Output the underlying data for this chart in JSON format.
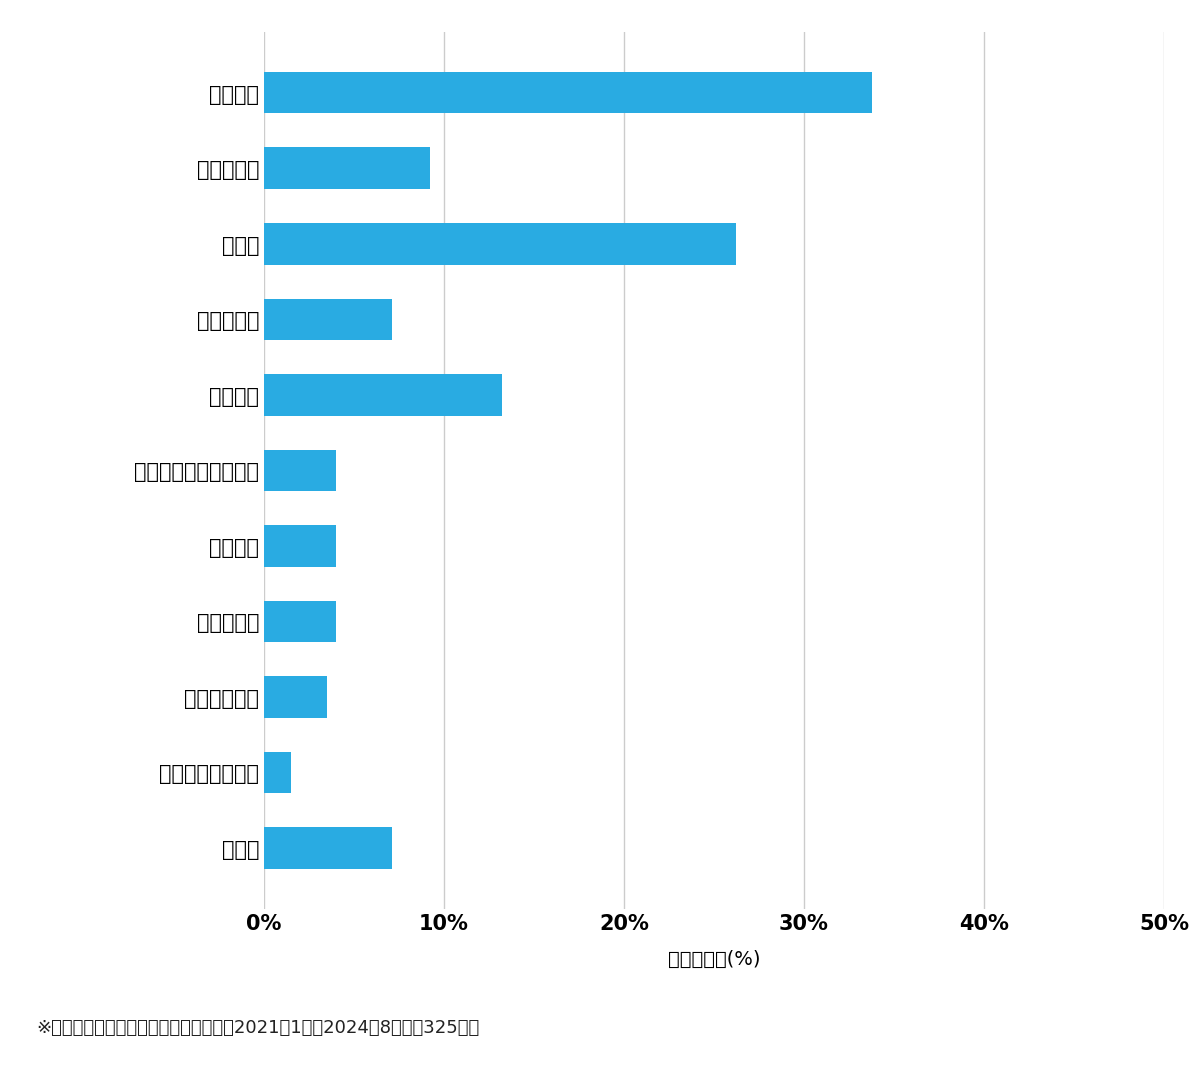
{
  "categories": [
    "その他",
    "スーツケース開鍵",
    "その他鍵作成",
    "玄関鍵作成",
    "金庫開鍵",
    "イモビ付国産車鍵作成",
    "車鍵作成",
    "その他開鍵",
    "車開鍵",
    "玄関鍵交換",
    "玄関開鍵"
  ],
  "values": [
    7.1,
    1.5,
    3.5,
    4.0,
    4.0,
    4.0,
    13.2,
    7.1,
    26.2,
    9.2,
    33.8
  ],
  "bar_color": "#29ABE2",
  "xlabel": "件数の割合(%)",
  "xlim": [
    0,
    50
  ],
  "xticks": [
    0,
    10,
    20,
    30,
    40,
    50
  ],
  "xtick_labels": [
    "0%",
    "10%",
    "20%",
    "30%",
    "40%",
    "50%"
  ],
  "footnote": "※弊社受付の案件を対象に集計（期間：2021年1月～2024年8月、計325件）",
  "background_color": "#ffffff",
  "grid_color": "#cccccc",
  "label_fontsize": 15,
  "tick_fontsize": 15,
  "xlabel_fontsize": 14,
  "footnote_fontsize": 13
}
